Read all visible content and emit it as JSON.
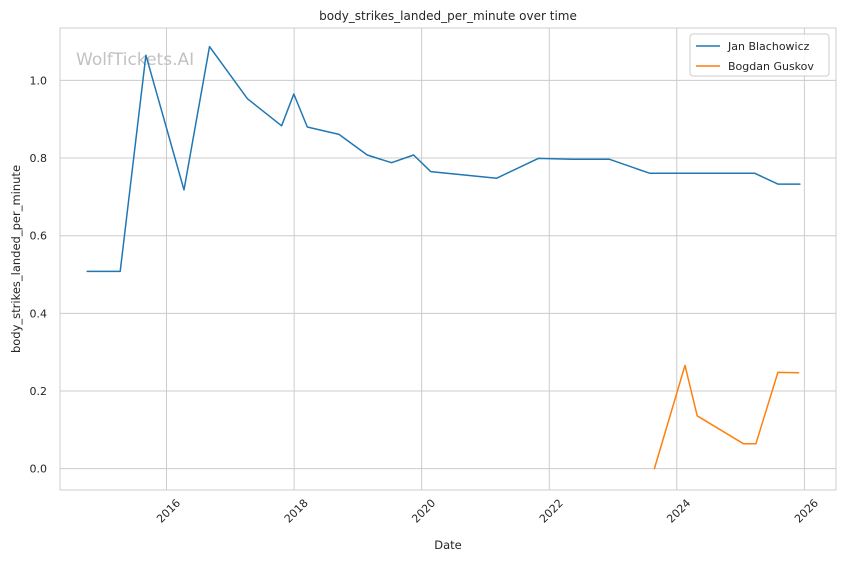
{
  "watermark": "WolfTickets.AI",
  "chart_data": {
    "type": "line",
    "title": "body_strikes_landed_per_minute over time",
    "xlabel": "Date",
    "ylabel": "body_strikes_landed_per_minute",
    "x_type": "date",
    "xlim": [
      "2014-05-01",
      "2026-07-01"
    ],
    "ylim": [
      -0.055,
      1.135
    ],
    "x_ticks": [
      "2016-01-01",
      "2018-01-01",
      "2020-01-01",
      "2022-01-01",
      "2024-01-01",
      "2026-01-01"
    ],
    "x_tick_labels": [
      "2016",
      "2018",
      "2020",
      "2022",
      "2024",
      "2026"
    ],
    "y_ticks": [
      0.0,
      0.2,
      0.4,
      0.6,
      0.8,
      1.0
    ],
    "y_tick_labels": [
      "0.0",
      "0.2",
      "0.4",
      "0.6",
      "0.8",
      "1.0"
    ],
    "grid": true,
    "legend_position": "top-right",
    "series": [
      {
        "name": "Jan Blachowicz",
        "color": "#1f77b4",
        "x": [
          "2014-10-04",
          "2015-04-11",
          "2015-09-05",
          "2016-04-10",
          "2016-09-03",
          "2017-04-08",
          "2017-10-21",
          "2017-12-30",
          "2018-03-17",
          "2018-09-15",
          "2019-02-23",
          "2019-07-13",
          "2019-11-16",
          "2020-02-22",
          "2021-03-06",
          "2021-10-30",
          "2022-05-14",
          "2022-12-10",
          "2023-07-29",
          "2024-02-10",
          "2025-03-22",
          "2025-08-02",
          "2025-12-06"
        ],
        "y": [
          0.508,
          0.508,
          1.065,
          0.718,
          1.087,
          0.953,
          0.883,
          0.965,
          0.88,
          0.861,
          0.808,
          0.788,
          0.808,
          0.765,
          0.748,
          0.799,
          0.797,
          0.797,
          0.761,
          0.761,
          0.761,
          0.733,
          0.733
        ]
      },
      {
        "name": "Bogdan Guskov",
        "color": "#ff7f0e",
        "x": [
          "2023-08-26",
          "2024-02-17",
          "2024-04-27",
          "2025-01-18",
          "2025-03-29",
          "2025-08-02",
          "2025-11-29"
        ],
        "y": [
          0.0,
          0.266,
          0.136,
          0.064,
          0.064,
          0.248,
          0.247
        ]
      }
    ]
  }
}
